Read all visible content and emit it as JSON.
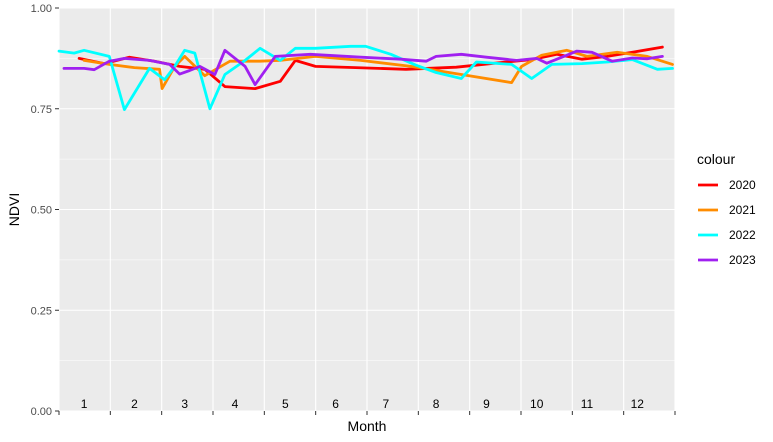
{
  "chart_data": {
    "type": "line",
    "title": "",
    "xlabel": "Month",
    "ylabel": "NDVI",
    "ylim": [
      0,
      1
    ],
    "yticks": [
      "0.00",
      "0.25",
      "0.50",
      "0.75",
      "1.00"
    ],
    "xlim": [
      0.5,
      12.75
    ],
    "month_labels": [
      "1",
      "2",
      "3",
      "4",
      "5",
      "6",
      "7",
      "8",
      "9",
      "10",
      "11",
      "12"
    ],
    "legend_title": "colour",
    "legend_position": "right",
    "grid": true,
    "panel_background": "#EBEBEB",
    "series": [
      {
        "name": "2020",
        "color": "#FF0000",
        "x": [
          0.9,
          1.4,
          1.9,
          2.4,
          2.9,
          3.4,
          3.8,
          4.4,
          4.9,
          5.2,
          5.6,
          6.4,
          7.4,
          8.4,
          9.4,
          9.9,
          10.4,
          10.9,
          11.4,
          11.9,
          12.5
        ],
        "y": [
          0.875,
          0.862,
          0.878,
          0.868,
          0.855,
          0.848,
          0.805,
          0.8,
          0.818,
          0.87,
          0.855,
          0.852,
          0.848,
          0.853,
          0.866,
          0.872,
          0.885,
          0.873,
          0.88,
          0.89,
          0.903
        ]
      },
      {
        "name": "2021",
        "color": "#FF8C00",
        "x": [
          1.0,
          1.5,
          2.0,
          2.5,
          2.55,
          2.8,
          3.0,
          3.4,
          3.9,
          4.5,
          4.9,
          5.6,
          6.5,
          7.5,
          8.5,
          9.5,
          9.7,
          10.1,
          10.6,
          11.0,
          11.6,
          12.2,
          12.7
        ],
        "y": [
          0.87,
          0.86,
          0.852,
          0.848,
          0.8,
          0.855,
          0.88,
          0.832,
          0.868,
          0.868,
          0.87,
          0.88,
          0.87,
          0.855,
          0.835,
          0.815,
          0.855,
          0.883,
          0.895,
          0.88,
          0.89,
          0.88,
          0.86
        ]
      },
      {
        "name": "2022",
        "color": "#00FFFF",
        "x": [
          0.5,
          0.8,
          1.0,
          1.5,
          1.8,
          2.3,
          2.6,
          2.8,
          3.0,
          3.2,
          3.5,
          3.8,
          4.2,
          4.5,
          4.9,
          5.2,
          5.6,
          6.3,
          6.6,
          7.1,
          7.6,
          8.0,
          8.5,
          8.8,
          9.5,
          9.9,
          10.3,
          10.9,
          11.4,
          11.9,
          12.4,
          12.7
        ],
        "y": [
          0.893,
          0.888,
          0.895,
          0.88,
          0.748,
          0.85,
          0.822,
          0.855,
          0.895,
          0.888,
          0.75,
          0.835,
          0.87,
          0.9,
          0.87,
          0.9,
          0.9,
          0.905,
          0.905,
          0.885,
          0.858,
          0.84,
          0.825,
          0.866,
          0.86,
          0.825,
          0.86,
          0.862,
          0.866,
          0.872,
          0.848,
          0.85
        ]
      },
      {
        "name": "2023",
        "color": "#A020F0",
        "x": [
          0.6,
          1.0,
          1.2,
          1.5,
          1.8,
          2.3,
          2.7,
          2.9,
          3.1,
          3.3,
          3.6,
          3.8,
          4.2,
          4.4,
          4.8,
          5.5,
          6.5,
          7.3,
          7.8,
          8.0,
          8.5,
          9.0,
          9.6,
          10.0,
          10.2,
          10.6,
          10.8,
          11.1,
          11.5,
          11.9,
          12.2,
          12.5
        ],
        "y": [
          0.85,
          0.85,
          0.847,
          0.868,
          0.875,
          0.87,
          0.86,
          0.836,
          0.845,
          0.855,
          0.835,
          0.895,
          0.855,
          0.81,
          0.88,
          0.885,
          0.878,
          0.873,
          0.868,
          0.88,
          0.885,
          0.878,
          0.87,
          0.875,
          0.863,
          0.883,
          0.893,
          0.89,
          0.868,
          0.876,
          0.874,
          0.88
        ]
      }
    ]
  }
}
